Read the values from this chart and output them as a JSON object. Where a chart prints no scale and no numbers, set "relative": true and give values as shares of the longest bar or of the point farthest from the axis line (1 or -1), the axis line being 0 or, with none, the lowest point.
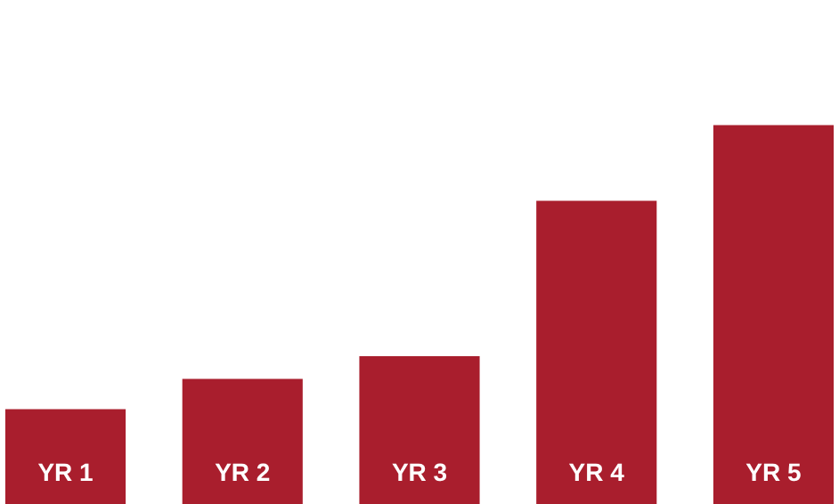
{
  "chart_data": {
    "type": "bar",
    "relative": true,
    "categories": [
      "YR 1",
      "YR 2",
      "YR 3",
      "YR 4",
      "YR 5"
    ],
    "series": [
      {
        "color": "#a91e2d",
        "values": [
          0.25,
          0.33,
          0.39,
          0.8,
          1
        ]
      }
    ],
    "tick_labels": false
  }
}
